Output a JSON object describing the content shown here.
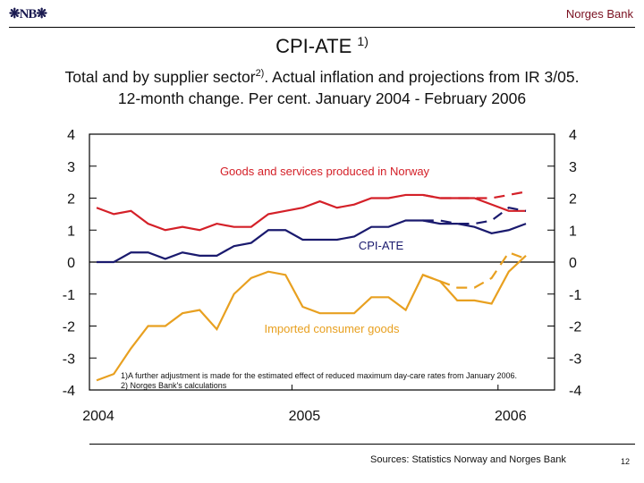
{
  "header": {
    "logo": "NB",
    "bank": "Norges Bank"
  },
  "title": {
    "text": "CPI-ATE",
    "sup": "1)"
  },
  "subtitle": {
    "line1_a": "Total and by supplier sector",
    "line1_sup": "2)",
    "line1_b": ". Actual inflation and projections from IR 3/05.",
    "line2": "12-month change. Per cent. January 2004 - February 2006"
  },
  "footer": {
    "sources": "Sources: Statistics Norway and Norges Bank",
    "page": "12"
  },
  "chart_data": {
    "type": "line",
    "title": "CPI-ATE 1)",
    "x": [
      "2004-01",
      "2004-02",
      "2004-03",
      "2004-04",
      "2004-05",
      "2004-06",
      "2004-07",
      "2004-08",
      "2004-09",
      "2004-10",
      "2004-11",
      "2004-12",
      "2005-01",
      "2005-02",
      "2005-03",
      "2005-04",
      "2005-05",
      "2005-06",
      "2005-07",
      "2005-08",
      "2005-09",
      "2005-10",
      "2005-11",
      "2005-12",
      "2006-01",
      "2006-02"
    ],
    "x_tick_labels": [
      "2004",
      "2005",
      "2006"
    ],
    "ylim": [
      -4,
      4
    ],
    "y_ticks": [
      "4",
      "3",
      "2",
      "1",
      "0",
      "-1",
      "-2",
      "-3",
      "-4"
    ],
    "grid": false,
    "series": [
      {
        "name": "Goods and services produced in Norway",
        "color": "#d42028",
        "values": [
          1.7,
          1.5,
          1.6,
          1.2,
          1.0,
          1.1,
          1.0,
          1.2,
          1.1,
          1.1,
          1.5,
          1.6,
          1.7,
          1.9,
          1.7,
          1.8,
          2.0,
          2.0,
          2.1,
          2.1,
          2.0,
          2.0,
          2.0,
          1.8,
          1.6,
          1.6
        ]
      },
      {
        "name": "CPI-ATE",
        "color": "#1a1a6e",
        "values": [
          0.0,
          0.0,
          0.3,
          0.3,
          0.1,
          0.3,
          0.2,
          0.2,
          0.5,
          0.6,
          1.0,
          1.0,
          0.7,
          0.7,
          0.7,
          0.8,
          1.1,
          1.1,
          1.3,
          1.3,
          1.2,
          1.2,
          1.1,
          0.9,
          1.0,
          1.2
        ]
      },
      {
        "name": "Imported consumer goods",
        "color": "#e8a020",
        "values": [
          -3.7,
          -3.5,
          -2.7,
          -2.0,
          -2.0,
          -1.6,
          -1.5,
          -2.1,
          -1.0,
          -0.5,
          -0.3,
          -0.4,
          -1.4,
          -1.6,
          -1.6,
          -1.6,
          -1.1,
          -1.1,
          -1.5,
          -0.4,
          -0.6,
          -1.2,
          -1.2,
          -1.3,
          -0.3,
          0.2
        ]
      }
    ],
    "projections": [
      {
        "series": "Goods and services produced in Norway",
        "color": "#d42028",
        "x_start": "2005-08",
        "values": [
          2.1,
          2.0,
          2.0,
          2.0,
          2.0,
          2.1,
          2.2
        ]
      },
      {
        "series": "CPI-ATE",
        "color": "#1a1a6e",
        "x_start": "2005-08",
        "values": [
          1.3,
          1.3,
          1.2,
          1.2,
          1.3,
          1.7,
          1.6
        ]
      },
      {
        "series": "Imported consumer goods",
        "color": "#e8a020",
        "x_start": "2005-08",
        "values": [
          -0.4,
          -0.6,
          -0.8,
          -0.8,
          -0.5,
          0.3,
          0.1
        ]
      }
    ],
    "footnotes": [
      "1)A further adjustment is made for the estimated effect of reduced maximum day-care rates from January 2006.",
      "2) Norges Bank's calculations"
    ]
  }
}
